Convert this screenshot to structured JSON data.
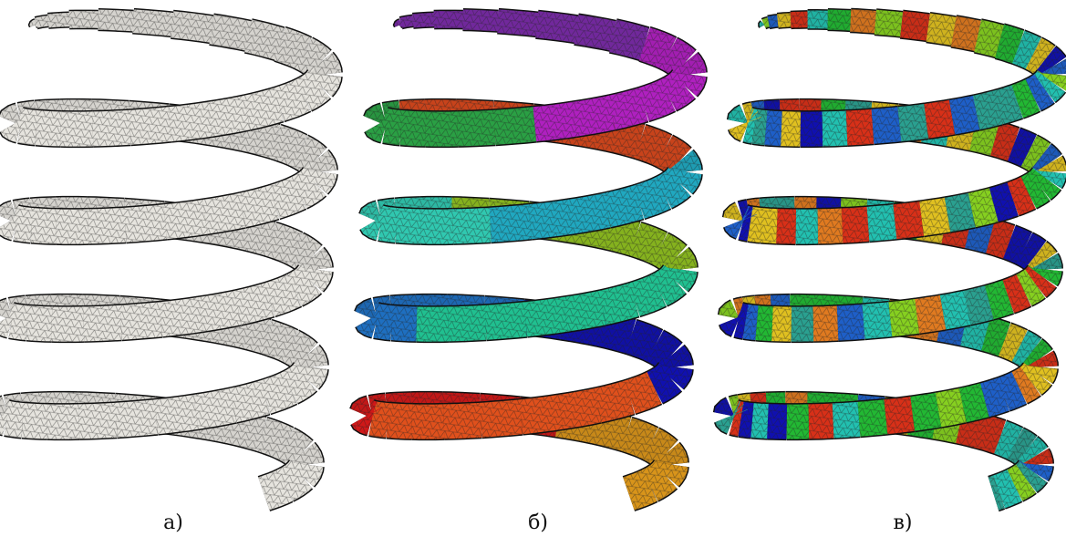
{
  "panels": [
    {
      "label": "а)"
    },
    {
      "label": "б)"
    },
    {
      "label": "в)"
    }
  ]
}
